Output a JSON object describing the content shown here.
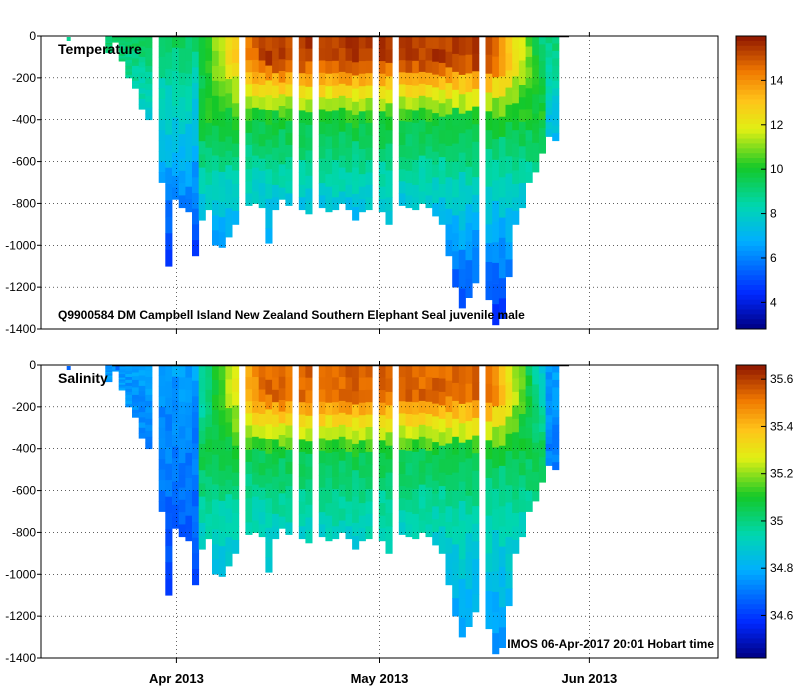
{
  "chart_data": [
    {
      "type": "heatmap",
      "title": "Temperature",
      "annotation": "Q9900584 DM Campbell Island New Zealand Southern Elephant Seal juvenile male",
      "ylim": [
        -1400,
        0
      ],
      "yticks": [
        0,
        -200,
        -400,
        -600,
        -800,
        -1000,
        -1200,
        -1400
      ],
      "xlim_days": [
        0,
        100
      ],
      "xticks": [
        {
          "day": 20,
          "label": "Apr 2013"
        },
        {
          "day": 50,
          "label": "May 2013"
        },
        {
          "day": 81,
          "label": "Jun 2013"
        }
      ],
      "colorbar": {
        "min": 2.8,
        "max": 16,
        "ticks": [
          4,
          6,
          8,
          10,
          12,
          14
        ]
      },
      "profile_start_day": 9.5,
      "profile_end_day": 76.5,
      "max_depth_m": [
        -80,
        -30,
        -120,
        -200,
        -250,
        -350,
        -400,
        -560,
        -700,
        -1100,
        -780,
        -820,
        -840,
        -1050,
        -880,
        -830,
        -1000,
        -1010,
        -960,
        -900,
        -830,
        -810,
        -800,
        -820,
        -990,
        -830,
        -780,
        -810,
        -790,
        -830,
        -850,
        -860,
        -820,
        -840,
        -830,
        -800,
        -830,
        -880,
        -840,
        -830,
        -960,
        -840,
        -900,
        -840,
        -810,
        -820,
        -830,
        -800,
        -820,
        -860,
        -900,
        -1050,
        -1200,
        -1300,
        -1250,
        -1180,
        -1380,
        -1260,
        -1380,
        -1350,
        -1150,
        -900,
        -820,
        -700,
        -650,
        -560,
        -480,
        -500
      ]
    },
    {
      "type": "heatmap",
      "title": "Salinity",
      "annotation": "IMOS 06-Apr-2017 20:01 Hobart time",
      "ylim": [
        -1400,
        0
      ],
      "yticks": [
        0,
        -200,
        -400,
        -600,
        -800,
        -1000,
        -1200,
        -1400
      ],
      "xlim_days": [
        0,
        100
      ],
      "xticks": [
        {
          "day": 20,
          "label": "Apr 2013"
        },
        {
          "day": 50,
          "label": "May 2013"
        },
        {
          "day": 81,
          "label": "Jun 2013"
        }
      ],
      "colorbar": {
        "min": 34.42,
        "max": 35.66,
        "ticks": [
          34.6,
          34.8,
          35,
          35.2,
          35.4,
          35.6
        ]
      },
      "profile_start_day": 9.5,
      "profile_end_day": 76.5
    }
  ]
}
